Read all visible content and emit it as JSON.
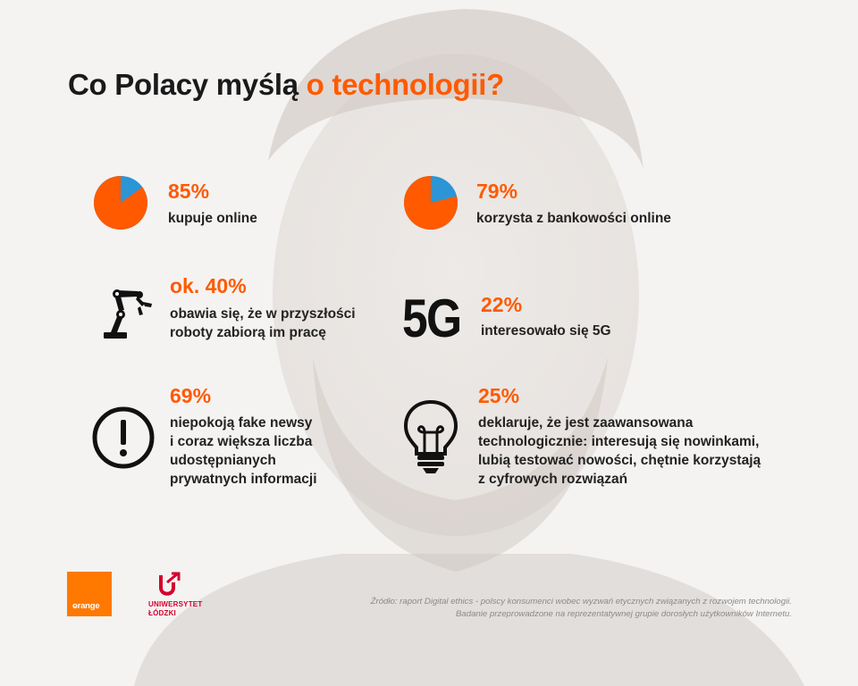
{
  "title": {
    "part1": "Co Polacy myślą ",
    "part2": "o technologii?"
  },
  "stats": [
    {
      "value": "85%",
      "text": "kupuje online",
      "icon": "pie-chart-icon",
      "share": 0.85
    },
    {
      "value": "79%",
      "text": "korzysta z bankowości online",
      "icon": "pie-chart-icon",
      "share": 0.79
    },
    {
      "value": "ok. 40%",
      "text": "obawia się, że w przyszłości\nroboty zabiorą im pracę",
      "icon": "robot-arm-icon"
    },
    {
      "value": "22%",
      "text": "interesowało się 5G",
      "icon": "5g-icon",
      "icon_text": "5G"
    },
    {
      "value": "69%",
      "text": "niepokoją fake newsy\ni coraz większa liczba\nudostępnianych\nprywatnych informacji",
      "icon": "exclamation-icon"
    },
    {
      "value": "25%",
      "text": "deklaruje, że jest zaawansowana\ntechnologicznie: interesują się nowinkami,\nlubią testować nowości, chętnie korzystają\nz cyfrowych rozwiązań",
      "icon": "lightbulb-icon"
    }
  ],
  "logos": {
    "orange": "orange",
    "orange_tm": "™",
    "university": "UNIWERSYTET\nŁÓDZKI"
  },
  "source": {
    "line1": "Źródło: raport Digital ethics - polscy konsumenci wobec wyzwań etycznych związanych z rozwojem technologii.",
    "line2": "Badanie przeprowadzone na reprezentatywnej grupie dorosłych użytkowników Internetu."
  },
  "colors": {
    "accent": "#ff5a00",
    "pie_main": "#ff5a00",
    "pie_rest": "#2b95d6",
    "orange_brand": "#ff7900",
    "university": "#d4002d"
  }
}
